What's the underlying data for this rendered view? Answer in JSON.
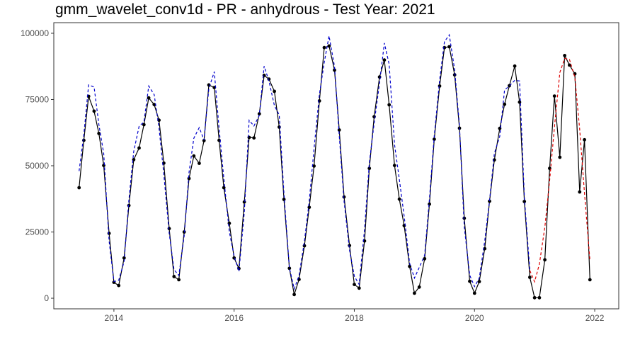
{
  "chart_data": {
    "type": "line",
    "title": "gmm_wavelet_conv1d - PR - anhydrous - Test Year: 2021",
    "xlabel": "",
    "ylabel": "",
    "xlim": [
      2013.0,
      2022.4
    ],
    "ylim": [
      -4000,
      104000
    ],
    "x_ticks": [
      2014,
      2016,
      2018,
      2020,
      2022
    ],
    "x_tick_labels": [
      "2014",
      "2016",
      "2018",
      "2020",
      "2022"
    ],
    "y_ticks": [
      0,
      25000,
      50000,
      75000,
      100000
    ],
    "y_tick_labels": [
      "0",
      "25000",
      "50000",
      "75000",
      "100000"
    ],
    "grid": false,
    "legend": "none",
    "x": [
      2013.42,
      2013.5,
      2013.58,
      2013.67,
      2013.75,
      2013.83,
      2013.92,
      2014.0,
      2014.08,
      2014.17,
      2014.25,
      2014.33,
      2014.42,
      2014.5,
      2014.58,
      2014.67,
      2014.75,
      2014.83,
      2014.92,
      2015.0,
      2015.08,
      2015.17,
      2015.25,
      2015.33,
      2015.42,
      2015.5,
      2015.58,
      2015.67,
      2015.75,
      2015.83,
      2015.92,
      2016.0,
      2016.08,
      2016.17,
      2016.25,
      2016.33,
      2016.42,
      2016.5,
      2016.58,
      2016.67,
      2016.75,
      2016.83,
      2016.92,
      2017.0,
      2017.08,
      2017.17,
      2017.25,
      2017.33,
      2017.42,
      2017.5,
      2017.58,
      2017.67,
      2017.75,
      2017.83,
      2017.92,
      2018.0,
      2018.08,
      2018.17,
      2018.25,
      2018.33,
      2018.42,
      2018.5,
      2018.58,
      2018.67,
      2018.75,
      2018.83,
      2018.92,
      2019.0,
      2019.08,
      2019.17,
      2019.25,
      2019.33,
      2019.42,
      2019.5,
      2019.58,
      2019.67,
      2019.75,
      2019.83,
      2019.92,
      2020.0,
      2020.08,
      2020.17,
      2020.25,
      2020.33,
      2020.42,
      2020.5,
      2020.58,
      2020.67,
      2020.75,
      2020.83,
      2020.92,
      2021.0,
      2021.08,
      2021.17,
      2021.25,
      2021.33,
      2021.42,
      2021.5,
      2021.58,
      2021.67,
      2021.75,
      2021.83,
      2021.92
    ],
    "series": [
      {
        "style": "solid-points",
        "color": "#000000",
        "values": [
          41700,
          59600,
          76200,
          70600,
          62200,
          50100,
          24500,
          6000,
          4800,
          15200,
          35000,
          52300,
          56700,
          65500,
          75600,
          73100,
          67200,
          51000,
          26300,
          8200,
          7000,
          25000,
          45200,
          53700,
          50900,
          59500,
          80500,
          79500,
          59600,
          41700,
          28300,
          15200,
          11200,
          36300,
          60700,
          60500,
          69600,
          84100,
          82700,
          78100,
          64600,
          37300,
          11300,
          1400,
          7100,
          19800,
          34300,
          49900,
          74500,
          94600,
          95200,
          86100,
          63500,
          38200,
          19900,
          5200,
          3800,
          21600,
          49000,
          68500,
          83500,
          89900,
          73000,
          50100,
          37400,
          27400,
          12000,
          1900,
          4200,
          14900,
          35500,
          60000,
          80100,
          94600,
          94900,
          84300,
          64200,
          30200,
          6400,
          1900,
          6300,
          18700,
          36600,
          52200,
          64100,
          73200,
          80200,
          87600,
          74000,
          36500,
          7900,
          200,
          200,
          14500,
          49000,
          76300,
          53200,
          91600,
          88000,
          84700,
          40100,
          59800,
          7000
        ]
      },
      {
        "style": "dashed",
        "color": "#0000cc",
        "values": [
          48000,
          61700,
          80500,
          79700,
          65500,
          54600,
          21600,
          6300,
          6800,
          13800,
          37200,
          55400,
          64900,
          66500,
          80100,
          76800,
          64300,
          46800,
          24500,
          10800,
          8600,
          23600,
          47500,
          60400,
          64400,
          59700,
          79100,
          85500,
          64000,
          45100,
          25100,
          15900,
          10100,
          32500,
          67200,
          65000,
          69000,
          87600,
          82000,
          72700,
          69200,
          39500,
          11400,
          3500,
          8500,
          21500,
          36600,
          56500,
          77000,
          89000,
          99000,
          87500,
          61400,
          36600,
          18200,
          8300,
          5200,
          26000,
          51100,
          66100,
          81200,
          96300,
          88300,
          58000,
          44800,
          30900,
          13200,
          7600,
          11600,
          16200,
          37500,
          61300,
          82400,
          96800,
          99400,
          86200,
          65200,
          26900,
          8700,
          4400,
          7600,
          21600,
          36900,
          54700,
          61100,
          78600,
          80100,
          82200,
          82000,
          38000,
          10500,
          null,
          null,
          null,
          null,
          null,
          null,
          null,
          null,
          null,
          null,
          null,
          null
        ]
      },
      {
        "style": "dashed",
        "color": "#dd0000",
        "values": [
          null,
          null,
          null,
          null,
          null,
          null,
          null,
          null,
          null,
          null,
          null,
          null,
          null,
          null,
          null,
          null,
          null,
          null,
          null,
          null,
          null,
          null,
          null,
          null,
          null,
          null,
          null,
          null,
          null,
          null,
          null,
          null,
          null,
          null,
          null,
          null,
          null,
          null,
          null,
          null,
          null,
          null,
          null,
          null,
          null,
          null,
          null,
          null,
          null,
          null,
          null,
          null,
          null,
          null,
          null,
          null,
          null,
          null,
          null,
          null,
          null,
          null,
          null,
          null,
          null,
          null,
          null,
          null,
          null,
          null,
          null,
          null,
          null,
          null,
          null,
          null,
          null,
          null,
          null,
          null,
          null,
          null,
          null,
          null,
          null,
          null,
          null,
          null,
          null,
          null,
          10500,
          6200,
          12900,
          26800,
          44500,
          64700,
          85200,
          90500,
          90100,
          83400,
          63800,
          39700,
          14200
        ]
      }
    ]
  }
}
